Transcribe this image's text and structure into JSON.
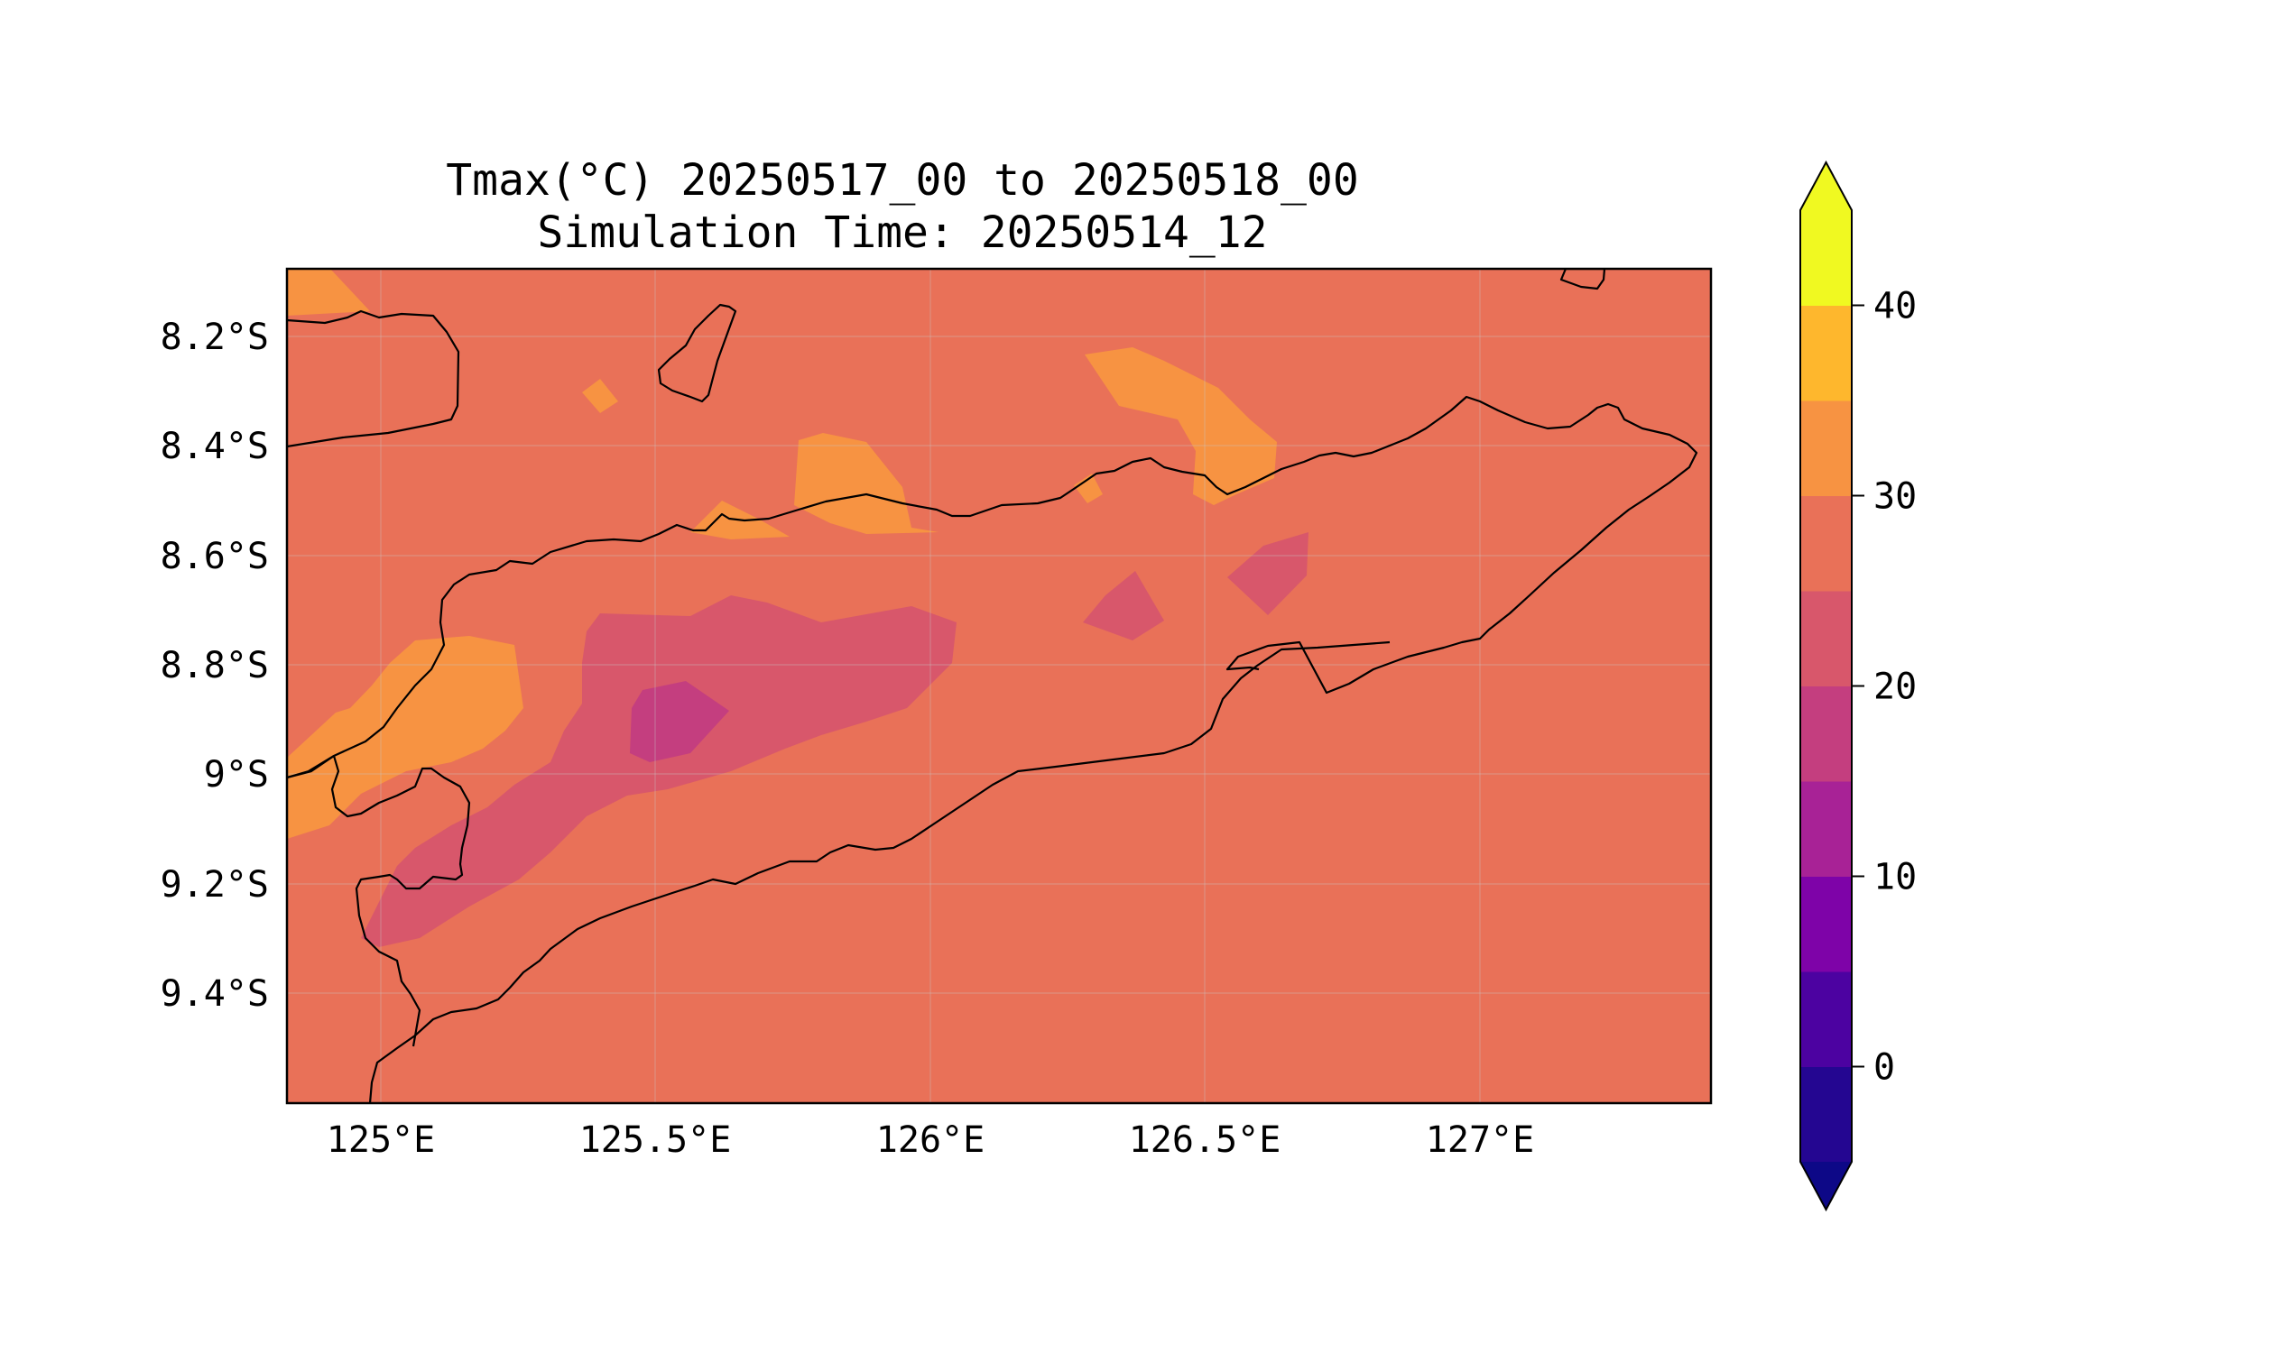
{
  "title": {
    "line1": "Tmax(°C) 20250517_00 to 20250518_00",
    "line2": "Simulation Time: 20250514_12"
  },
  "map": {
    "variable": "Tmax",
    "units": "°C",
    "x_ticks": [
      "125°E",
      "125.5°E",
      "126°E",
      "126.5°E",
      "127°E"
    ],
    "y_ticks": [
      "8.2°S",
      "8.4°S",
      "8.6°S",
      "8.8°S",
      "9°S",
      "9.2°S",
      "9.4°S"
    ],
    "lon_range": [
      124.83,
      127.42
    ],
    "lat_range": [
      -9.6,
      -8.08
    ],
    "background_level": "25 to 30",
    "grid": true
  },
  "colorbar": {
    "ticks": [
      "40",
      "30",
      "20",
      "10",
      "0"
    ],
    "levels": [
      -5,
      0,
      5,
      10,
      15,
      20,
      25,
      30,
      35,
      40,
      45
    ],
    "colors": [
      "#240691",
      "#4c02a1",
      "#7e03a8",
      "#a82296",
      "#c43e7f",
      "#d8576b",
      "#e97158",
      "#f79342",
      "#feb72d",
      "#f0f921"
    ],
    "under_color": "#0d0887",
    "over_color": "#f0f921",
    "extend": "both"
  },
  "colors": {
    "c25_30": "#e97158",
    "c30_35": "#f79342",
    "c35_40": "#feb72d",
    "c20_25": "#d8576b",
    "c15_20": "#c43e7f"
  }
}
